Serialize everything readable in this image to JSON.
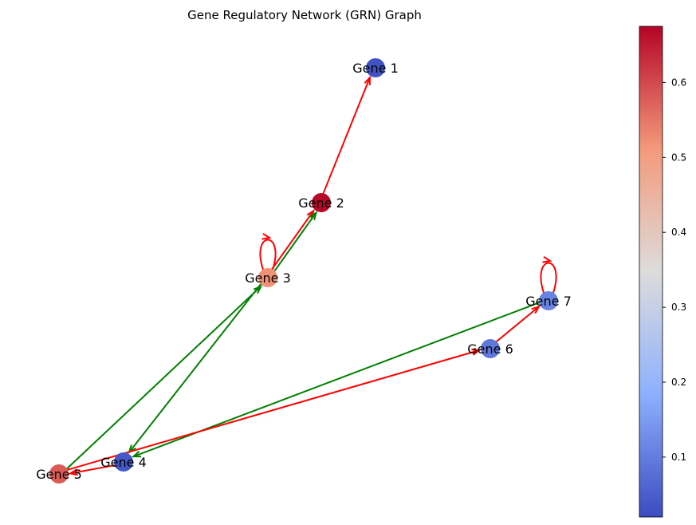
{
  "title": "Gene Regulatory Network (GRN) Graph",
  "nodes": [
    {
      "id": "g1",
      "label": "Gene 1",
      "value": 0.03
    },
    {
      "id": "g2",
      "label": "Gene 2",
      "value": 0.67
    },
    {
      "id": "g3",
      "label": "Gene 3",
      "value": 0.52
    },
    {
      "id": "g4",
      "label": "Gene 4",
      "value": 0.04
    },
    {
      "id": "g5",
      "label": "Gene 5",
      "value": 0.58
    },
    {
      "id": "g6",
      "label": "Gene 6",
      "value": 0.09
    },
    {
      "id": "g7",
      "label": "Gene 7",
      "value": 0.11
    }
  ],
  "edges": [
    {
      "from": "g2",
      "to": "g1",
      "type": "repression",
      "color": "#ff0000"
    },
    {
      "from": "g3",
      "to": "g2",
      "type": "repression",
      "color": "#ff0000"
    },
    {
      "from": "g3",
      "to": "g2",
      "type": "activation",
      "color": "#008000"
    },
    {
      "from": "g3",
      "to": "g3",
      "type": "repression",
      "color": "#ff0000"
    },
    {
      "from": "g5",
      "to": "g3",
      "type": "activation",
      "color": "#008000"
    },
    {
      "from": "g3",
      "to": "g4",
      "type": "activation",
      "color": "#008000"
    },
    {
      "from": "g7",
      "to": "g4",
      "type": "activation",
      "color": "#008000"
    },
    {
      "from": "g5",
      "to": "g6",
      "type": "repression",
      "color": "#ff0000"
    },
    {
      "from": "g4",
      "to": "g5",
      "type": "repression",
      "color": "#ff0000"
    },
    {
      "from": "g6",
      "to": "g7",
      "type": "repression",
      "color": "#ff0000"
    },
    {
      "from": "g7",
      "to": "g7",
      "type": "repression",
      "color": "#ff0000"
    }
  ],
  "colorbar": {
    "colormap": "coolwarm",
    "min": 0.02,
    "max": 0.675,
    "ticks": [
      "0.1",
      "0.2",
      "0.3",
      "0.4",
      "0.5",
      "0.6"
    ]
  }
}
